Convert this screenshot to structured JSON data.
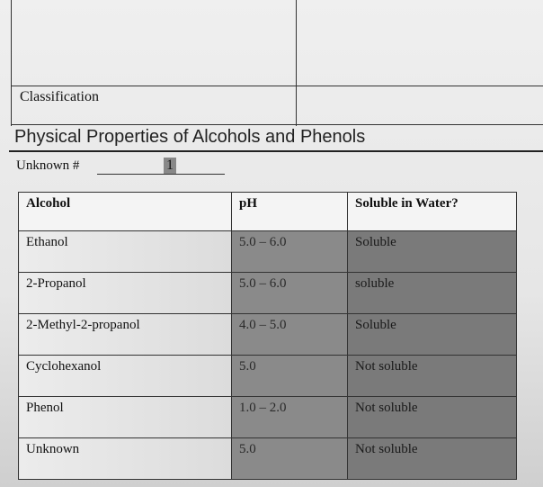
{
  "top_table": {
    "classification_label": "Classification"
  },
  "section_title": "Physical Properties of Alcohols and Phenols",
  "unknown": {
    "label": "Unknown #",
    "value": "1"
  },
  "table": {
    "headers": [
      "Alcohol",
      "pH",
      "Soluble in Water?"
    ],
    "rows": [
      [
        "Ethanol",
        "5.0 – 6.0",
        "Soluble"
      ],
      [
        "2-Propanol",
        "5.0 – 6.0",
        "soluble"
      ],
      [
        "2-Methyl-2-propanol",
        "4.0 – 5.0",
        "Soluble"
      ],
      [
        "Cyclohexanol",
        "5.0",
        "Not soluble"
      ],
      [
        "Phenol",
        "1.0 – 2.0",
        "Not soluble"
      ],
      [
        "Unknown",
        "5.0",
        "Not soluble"
      ]
    ]
  }
}
